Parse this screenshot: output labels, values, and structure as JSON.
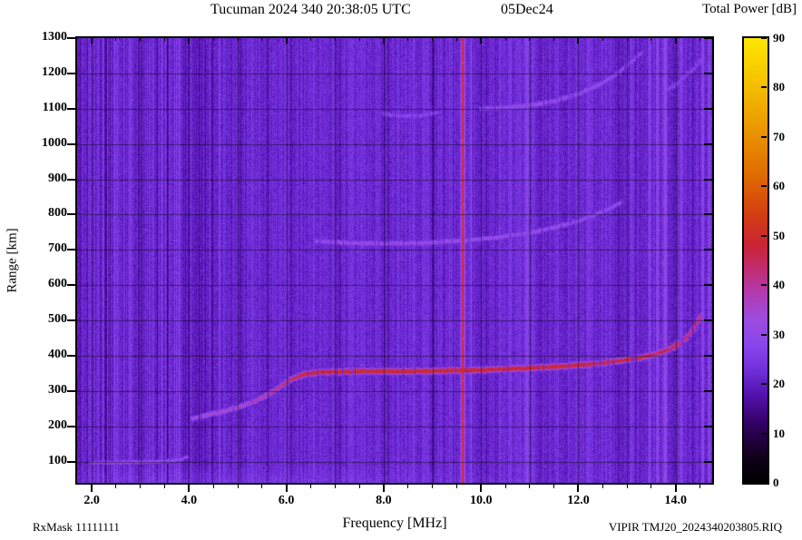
{
  "title": {
    "left": "Tucuman 2024 340 20:38:05 UTC",
    "right": "05Dec24"
  },
  "colorbar": {
    "title": "Total Power [dB]",
    "min": 0,
    "max": 90,
    "ticks": [
      {
        "v": 0,
        "label": "0"
      },
      {
        "v": 10,
        "label": "10"
      },
      {
        "v": 20,
        "label": "20"
      },
      {
        "v": 30,
        "label": "30"
      },
      {
        "v": 40,
        "label": "40"
      },
      {
        "v": 50,
        "label": "50"
      },
      {
        "v": 60,
        "label": "60"
      },
      {
        "v": 70,
        "label": "70"
      },
      {
        "v": 80,
        "label": "80"
      },
      {
        "v": 90,
        "label": "90"
      }
    ]
  },
  "axes": {
    "x": {
      "label": "Frequency [MHz]",
      "major": [
        {
          "v": 2.0,
          "label": "2.0"
        },
        {
          "v": 4.0,
          "label": "4.0"
        },
        {
          "v": 6.0,
          "label": "6.0"
        },
        {
          "v": 8.0,
          "label": "8.0"
        },
        {
          "v": 10.0,
          "label": "10.0"
        },
        {
          "v": 12.0,
          "label": "12.0"
        },
        {
          "v": 14.0,
          "label": "14.0"
        }
      ],
      "minor_step": 0.5
    },
    "y": {
      "label": "Range [km]",
      "major": [
        {
          "v": 100,
          "label": "100"
        },
        {
          "v": 200,
          "label": "200"
        },
        {
          "v": 300,
          "label": "300"
        },
        {
          "v": 400,
          "label": "400"
        },
        {
          "v": 500,
          "label": "500"
        },
        {
          "v": 600,
          "label": "600"
        },
        {
          "v": 700,
          "label": "700"
        },
        {
          "v": 800,
          "label": "800"
        },
        {
          "v": 900,
          "label": "900"
        },
        {
          "v": 1000,
          "label": "1000"
        },
        {
          "v": 1100,
          "label": "1100"
        },
        {
          "v": 1200,
          "label": "1200"
        },
        {
          "v": 1300,
          "label": "1300"
        }
      ]
    }
  },
  "footer": {
    "left": "RxMask 11111111",
    "right": "VIPIR  TMJ20_2024340203805.RIQ"
  },
  "chart_data": {
    "type": "heatmap",
    "title": "Tucuman 2024 340 20:38:05 UTC  05Dec24 — ionogram, total power vs frequency and range",
    "xlabel": "Frequency [MHz]",
    "ylabel": "Range [km]",
    "zlabel": "Total Power [dB]",
    "xlim": [
      1.7,
      14.75
    ],
    "ylim": [
      40,
      1300
    ],
    "zlim": [
      0,
      90
    ],
    "grid": {
      "x_step_mhz": 1.0,
      "y_step_km": 100
    },
    "colormap_stops": [
      [
        0,
        "#000000"
      ],
      [
        5,
        "#0e0018"
      ],
      [
        12,
        "#330064"
      ],
      [
        18,
        "#5512b0"
      ],
      [
        23,
        "#7230dc"
      ],
      [
        28,
        "#8a46ec"
      ],
      [
        33,
        "#9c4ce0"
      ],
      [
        38,
        "#b13cb4"
      ],
      [
        43,
        "#c12c74"
      ],
      [
        48,
        "#ca2436"
      ],
      [
        54,
        "#d23c12"
      ],
      [
        62,
        "#df6a00"
      ],
      [
        71,
        "#ea9400"
      ],
      [
        80,
        "#f4bd00"
      ],
      [
        90,
        "#ffe600"
      ]
    ],
    "noise": {
      "base_db": 21.8,
      "pixel_jitter_db": 6,
      "column_jitter_db": 2.4,
      "extra_column_jitter_below_mhz": 4.7,
      "extra_column_jitter_db": 4.5,
      "low_range_boost_db": 3.0,
      "low_range_boost_below_km": 95
    },
    "rfi_stripes_freq_sigma_delta": [
      [
        2.28,
        0.02,
        -4
      ],
      [
        2.5,
        0.015,
        2.5
      ],
      [
        2.62,
        0.02,
        -3
      ],
      [
        2.8,
        0.015,
        2
      ],
      [
        2.95,
        0.02,
        -4
      ],
      [
        3.1,
        0.015,
        2.5
      ],
      [
        3.35,
        0.02,
        -3
      ],
      [
        3.55,
        0.02,
        -3.5
      ],
      [
        3.72,
        0.06,
        3.5
      ],
      [
        3.95,
        0.02,
        -4
      ],
      [
        4.1,
        0.05,
        -4.5
      ],
      [
        4.3,
        0.04,
        -3.5
      ],
      [
        4.45,
        0.03,
        -4.5
      ],
      [
        4.62,
        0.02,
        2.5
      ],
      [
        4.85,
        0.02,
        -2.5
      ],
      [
        5.05,
        0.02,
        -3
      ],
      [
        5.3,
        0.02,
        2
      ],
      [
        5.6,
        0.02,
        -3
      ],
      [
        5.85,
        0.02,
        2
      ],
      [
        6.1,
        0.03,
        -2.5
      ],
      [
        6.55,
        0.02,
        2.5
      ],
      [
        7.1,
        0.02,
        -2
      ],
      [
        7.6,
        0.02,
        2
      ],
      [
        8.1,
        0.03,
        -2
      ],
      [
        8.6,
        0.02,
        2
      ],
      [
        9.0,
        0.03,
        -3
      ],
      [
        9.35,
        0.02,
        2.5
      ],
      [
        9.62,
        0.028,
        24
      ],
      [
        9.78,
        0.015,
        5
      ],
      [
        10.1,
        0.02,
        -3
      ],
      [
        10.38,
        0.02,
        4.5
      ],
      [
        10.6,
        0.02,
        4
      ],
      [
        10.95,
        0.05,
        4.5
      ],
      [
        11.2,
        0.02,
        -3
      ],
      [
        11.55,
        0.02,
        4.5
      ],
      [
        11.9,
        0.02,
        -2
      ],
      [
        12.2,
        0.03,
        4
      ],
      [
        12.55,
        0.02,
        3.5
      ],
      [
        12.8,
        0.03,
        -4
      ],
      [
        13.1,
        0.02,
        3
      ],
      [
        13.45,
        0.02,
        5
      ],
      [
        13.62,
        0.02,
        6
      ],
      [
        13.78,
        0.025,
        8
      ],
      [
        13.95,
        0.02,
        -3
      ],
      [
        14.1,
        0.02,
        4.5
      ],
      [
        14.35,
        0.02,
        -2
      ],
      [
        14.55,
        0.02,
        6
      ],
      [
        14.68,
        0.02,
        8
      ]
    ],
    "traces": [
      {
        "name": "E-region echo",
        "sigma_km": 6,
        "points": [
          [
            1.95,
            98,
            31
          ],
          [
            2.4,
            99,
            32
          ],
          [
            2.9,
            100,
            32
          ],
          [
            3.3,
            101,
            32
          ],
          [
            3.6,
            103,
            31
          ],
          [
            3.82,
            107,
            30
          ],
          [
            3.98,
            116,
            29
          ]
        ]
      },
      {
        "name": "F-region echo 1st hop",
        "sigma_km": 8,
        "points": [
          [
            4.05,
            222,
            33
          ],
          [
            4.35,
            233,
            34
          ],
          [
            4.7,
            244,
            35
          ],
          [
            5.0,
            255,
            36
          ],
          [
            5.3,
            270,
            37
          ],
          [
            5.6,
            290,
            39
          ],
          [
            5.85,
            312,
            42
          ],
          [
            6.1,
            335,
            45
          ],
          [
            6.35,
            349,
            47
          ],
          [
            6.7,
            355,
            49
          ],
          [
            7.5,
            357,
            50
          ],
          [
            8.5,
            357,
            50
          ],
          [
            9.3,
            359,
            50
          ],
          [
            10.2,
            362,
            49
          ],
          [
            11.0,
            367,
            49
          ],
          [
            11.8,
            372,
            49
          ],
          [
            12.4,
            379,
            48
          ],
          [
            12.9,
            388,
            48
          ],
          [
            13.3,
            397,
            47
          ],
          [
            13.6,
            407,
            46
          ],
          [
            13.85,
            419,
            46
          ],
          [
            14.05,
            434,
            45
          ],
          [
            14.2,
            451,
            44
          ],
          [
            14.32,
            470,
            43
          ],
          [
            14.42,
            490,
            43
          ],
          [
            14.52,
            512,
            42
          ]
        ]
      },
      {
        "name": "F-region echo 2nd hop",
        "sigma_km": 8,
        "points": [
          [
            6.6,
            726,
            30
          ],
          [
            7.2,
            721,
            31
          ],
          [
            8.0,
            719,
            31
          ],
          [
            8.8,
            721,
            31
          ],
          [
            9.6,
            727,
            31
          ],
          [
            10.3,
            736,
            31
          ],
          [
            11.0,
            750,
            31
          ],
          [
            11.6,
            768,
            31
          ],
          [
            12.1,
            788,
            30
          ],
          [
            12.5,
            810,
            30
          ],
          [
            12.9,
            838,
            29
          ]
        ]
      },
      {
        "name": "F-region echo 3rd hop",
        "sigma_km": 9,
        "points": [
          [
            9.95,
            1101,
            29
          ],
          [
            10.5,
            1104,
            30
          ],
          [
            11.0,
            1111,
            30
          ],
          [
            11.5,
            1123,
            30
          ],
          [
            12.0,
            1143,
            30
          ],
          [
            12.4,
            1168,
            30
          ],
          [
            12.75,
            1197,
            29
          ],
          [
            13.05,
            1230,
            29
          ],
          [
            13.3,
            1262,
            28
          ]
        ]
      },
      {
        "name": "faint multi-hop echo",
        "sigma_km": 8,
        "points": [
          [
            7.95,
            1088,
            27
          ],
          [
            8.35,
            1080,
            28
          ],
          [
            8.75,
            1082,
            28
          ],
          [
            9.15,
            1092,
            27
          ]
        ]
      },
      {
        "name": "faint multi-hop echo upper right",
        "sigma_km": 8,
        "points": [
          [
            13.75,
            1150,
            27
          ],
          [
            14.05,
            1178,
            28
          ],
          [
            14.35,
            1212,
            28
          ],
          [
            14.6,
            1248,
            27
          ]
        ]
      }
    ]
  }
}
